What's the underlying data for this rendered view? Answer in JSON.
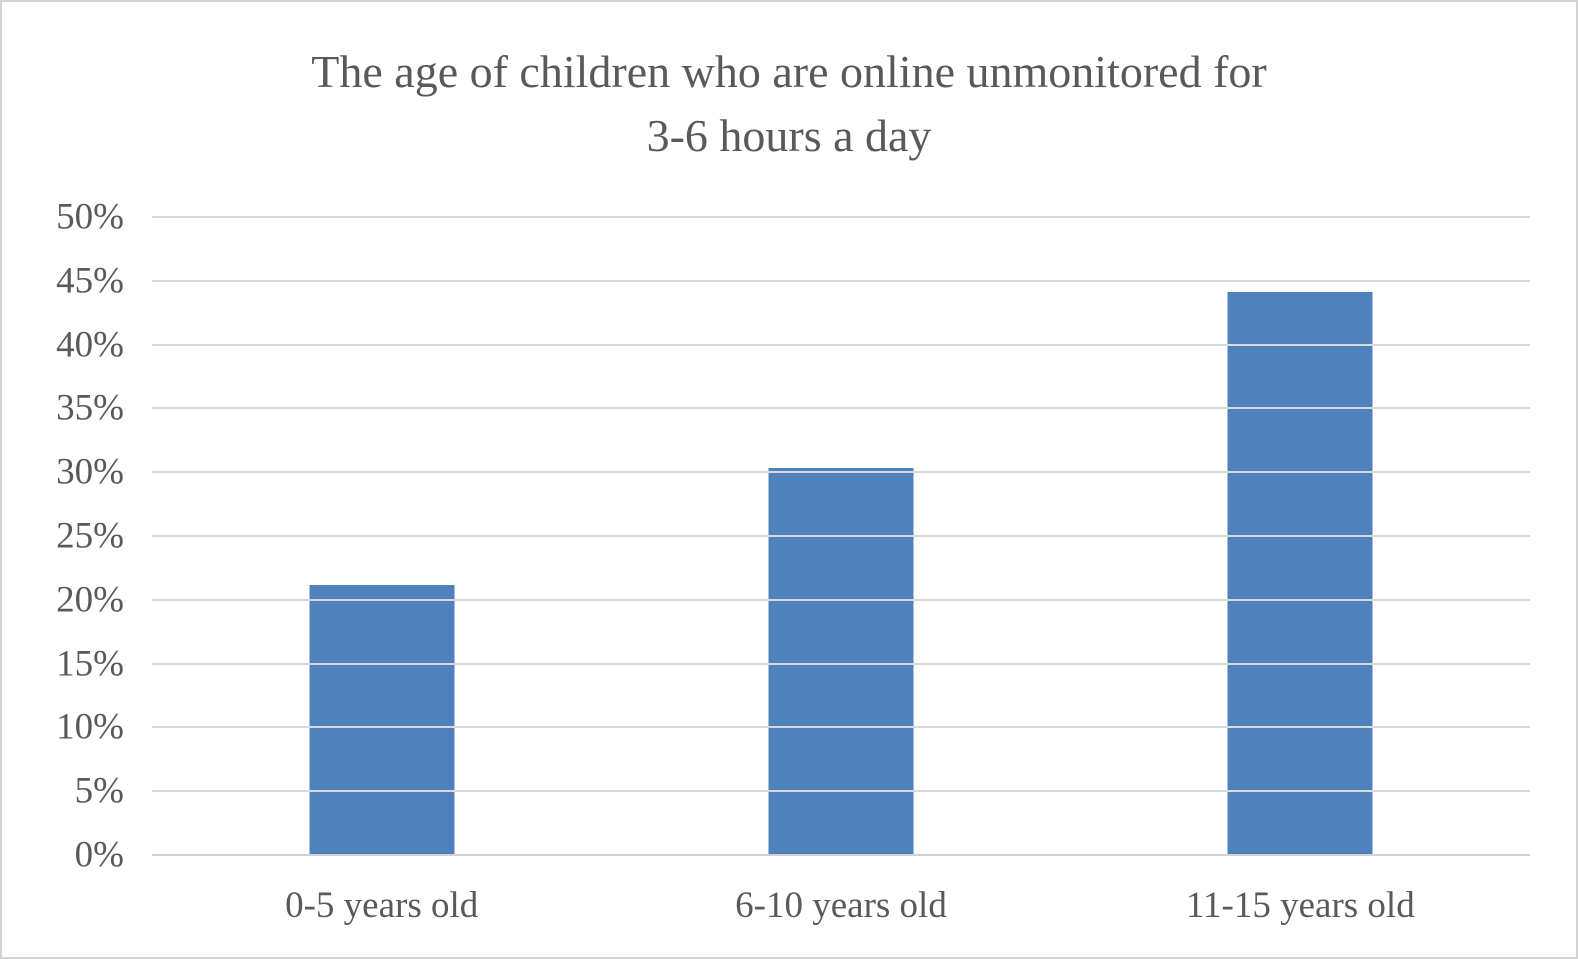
{
  "chart_data": {
    "type": "bar",
    "title": "The age of children who are online unmonitored for 3-6 hours a day",
    "title_lines": [
      "The age of children who are online unmonitored for",
      "3-6 hours a day"
    ],
    "categories": [
      "0-5 years old",
      "6-10 years old",
      "11-15 years old"
    ],
    "values": [
      21.2,
      30.3,
      44.1
    ],
    "xlabel": "",
    "ylabel": "",
    "ylim": [
      0,
      50
    ],
    "y_ticks": [
      0,
      5,
      10,
      15,
      20,
      25,
      30,
      35,
      40,
      45,
      50
    ],
    "y_tick_labels": [
      "0%",
      "5%",
      "10%",
      "15%",
      "20%",
      "25%",
      "30%",
      "35%",
      "40%",
      "45%",
      "50%"
    ],
    "grid": true,
    "legend": false,
    "colors": {
      "bar": "#4f81bd",
      "gridline": "#d9d9d9",
      "axis_line": "#d2d0d0",
      "text": "#595959",
      "frame_border": "#d3d3d3",
      "background": "#ffffff"
    }
  }
}
